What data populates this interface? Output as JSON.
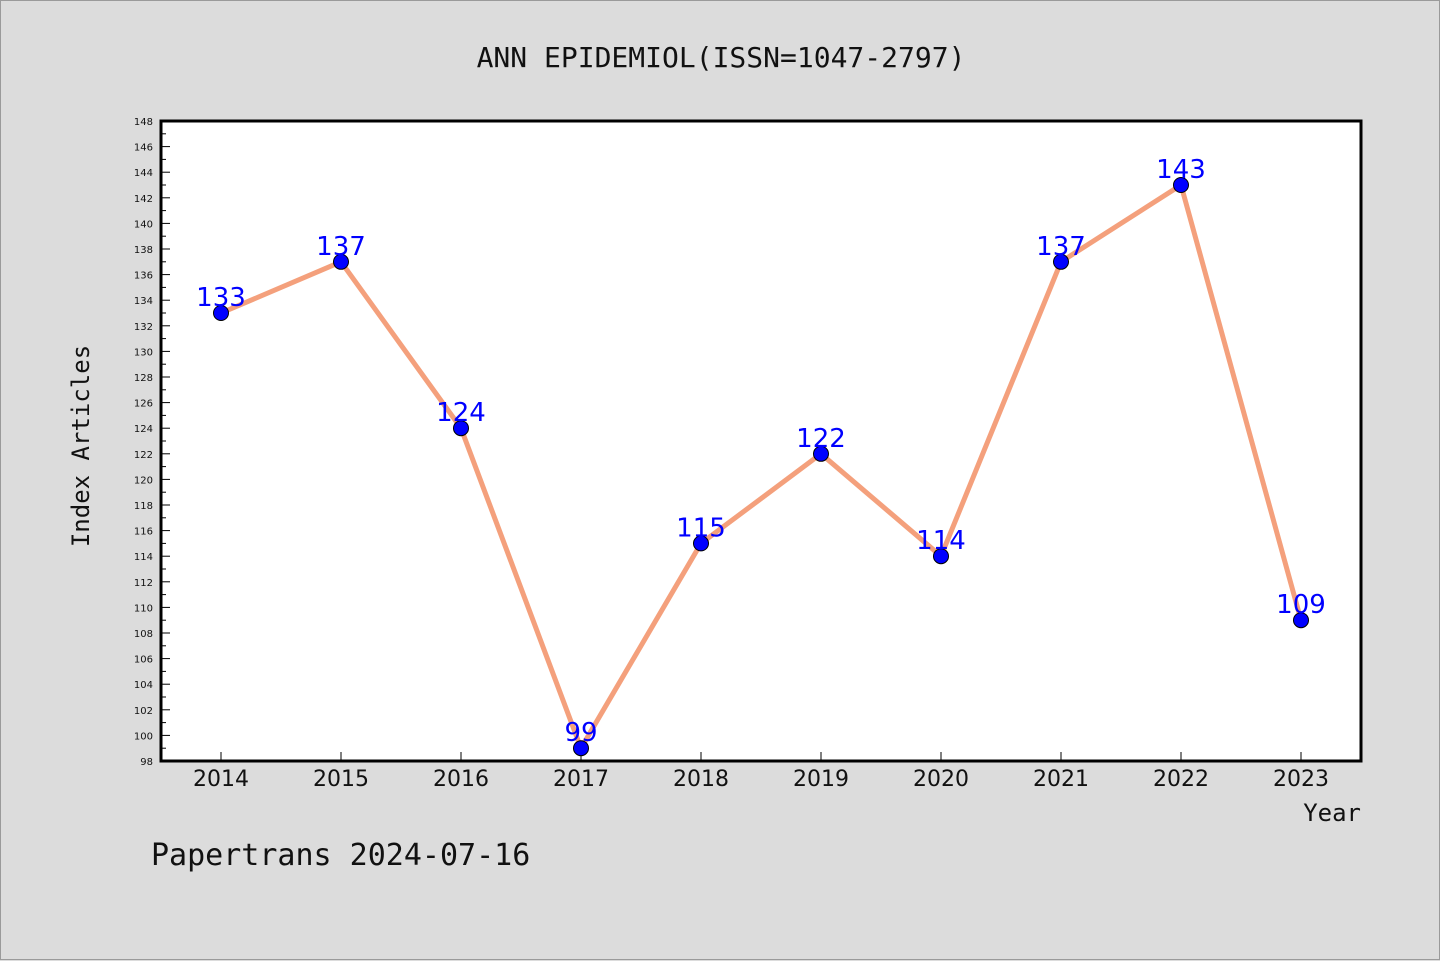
{
  "chart_data": {
    "type": "line",
    "title": "ANN EPIDEMIOL(ISSN=1047-2797)",
    "xlabel": "Year",
    "ylabel": "Index Articles",
    "categories": [
      "2014",
      "2015",
      "2016",
      "2017",
      "2018",
      "2019",
      "2020",
      "2021",
      "2022",
      "2023"
    ],
    "series": [
      {
        "values": [
          133,
          137,
          124,
          99,
          115,
          122,
          114,
          137,
          143,
          109
        ]
      }
    ],
    "ylim": [
      98,
      148
    ],
    "y_tick_step": 2,
    "grid": false,
    "data_labels": true,
    "colors": {
      "line": "#f4a07c",
      "marker": "#0000ff",
      "label": "#0000ff",
      "background": "#dcdcdc",
      "plot_background": "#ffffff"
    }
  },
  "footer": {
    "watermark": "Papertrans 2024-07-16"
  }
}
